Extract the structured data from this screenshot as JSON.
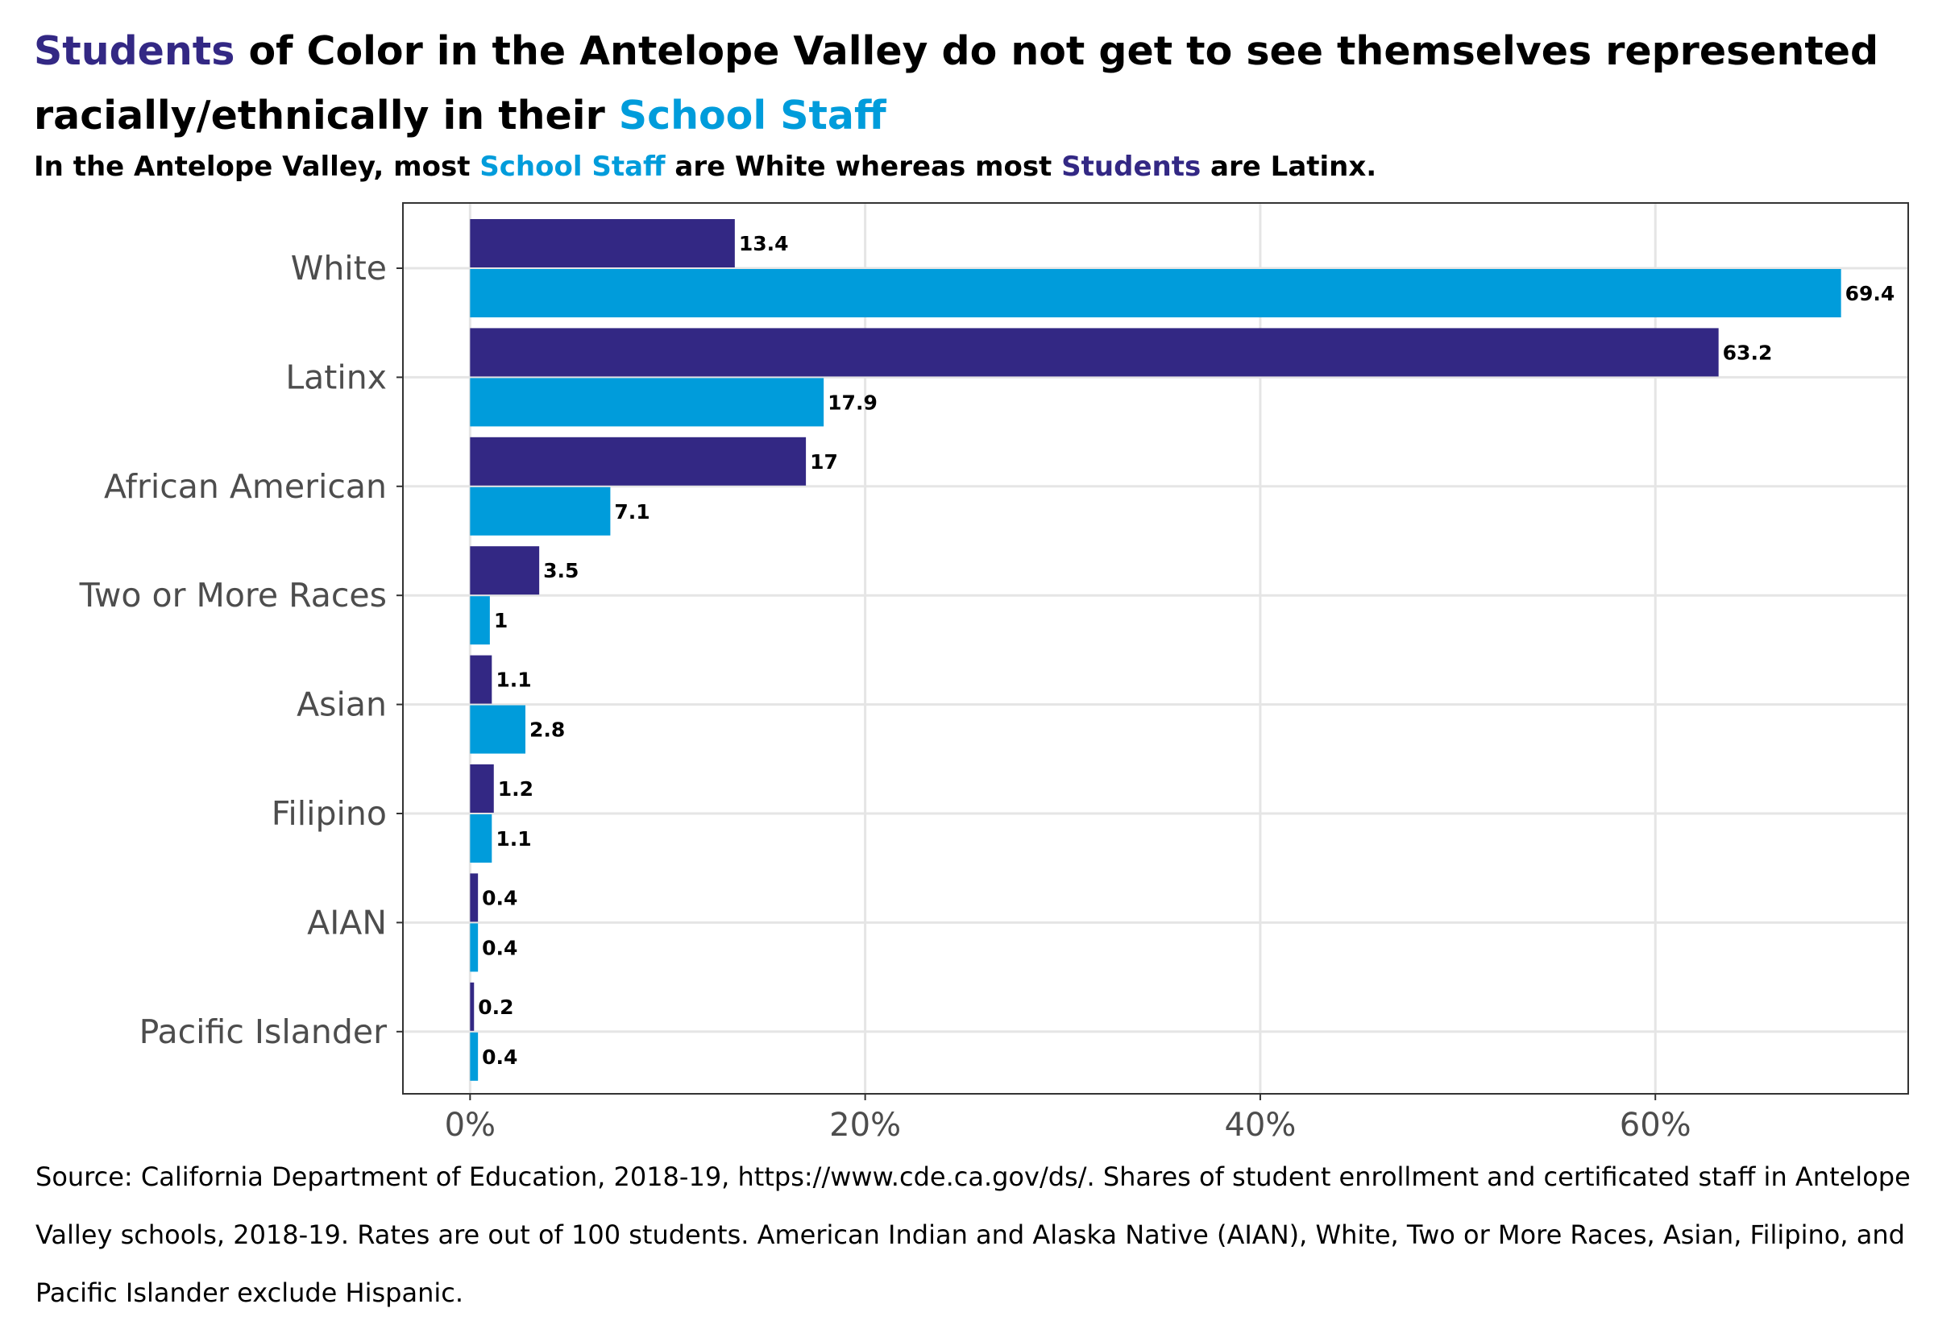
{
  "title": {
    "part1": "Students",
    "part2": " of Color in the Antelope Valley do not get to see themselves represented racially/ethnically in their ",
    "part3": "School Staff"
  },
  "subtitle": {
    "part1": "In the Antelope Valley, most ",
    "part2": "School Staff",
    "part3": " are White whereas most ",
    "part4": "Students",
    "part5": " are Latinx."
  },
  "caption": "Source: California Department of Education, 2018-19, https://www.cde.ca.gov/ds/. Shares of student enrollment and certificated staff in Antelope Valley schools, 2018-19. Rates are out of 100 students. American Indian and Alaska Native (AIAN), White, Two or More Races, Asian, Filipino, and Pacific Islander exclude Hispanic.",
  "colors": {
    "students": "#332884",
    "staff": "#009CDB",
    "grid": "#e5e5e5",
    "frame": "#333333"
  },
  "chart_data": {
    "type": "bar",
    "orientation": "horizontal",
    "categories": [
      "White",
      "Latinx",
      "African American",
      "Two or More Races",
      "Asian",
      "Filipino",
      "AIAN",
      "Pacific Islander"
    ],
    "series": [
      {
        "name": "Students",
        "values": [
          13.4,
          63.2,
          17,
          3.5,
          1.1,
          1.2,
          0.4,
          0.2
        ],
        "labels": [
          "13.4",
          "63.2",
          "17",
          "3.5",
          "1.1",
          "1.2",
          "0.4",
          "0.2"
        ]
      },
      {
        "name": "School Staff",
        "values": [
          69.4,
          17.9,
          7.1,
          1,
          2.8,
          1.1,
          0.4,
          0.4
        ],
        "labels": [
          "69.4",
          "17.9",
          "7.1",
          "1",
          "2.8",
          "1.1",
          "0.4",
          "0.4"
        ]
      }
    ],
    "x_ticks": [
      0,
      20,
      40,
      60
    ],
    "x_tick_labels": [
      "0%",
      "20%",
      "40%",
      "60%"
    ],
    "xlim": [
      -3.4,
      72.8
    ],
    "grid": true,
    "legend": "none"
  }
}
